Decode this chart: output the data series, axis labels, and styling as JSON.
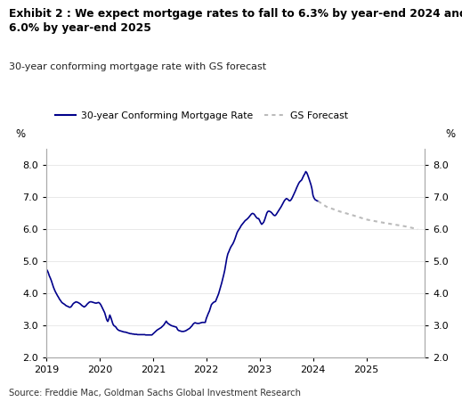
{
  "title_line1": "Exhibit 2 : We expect mortgage rates to fall to 6.3% by year-end 2024 and",
  "title_line2": "6.0% by year-end 2025",
  "subtitle": "30-year conforming mortgage rate with GS forecast",
  "source": "Source: Freddie Mac, Goldman Sachs Global Investment Research",
  "ylabel_left": "%",
  "ylabel_right": "%",
  "ylim": [
    2.0,
    8.5
  ],
  "yticks": [
    2.0,
    3.0,
    4.0,
    5.0,
    6.0,
    7.0,
    8.0
  ],
  "line_color": "#00008B",
  "forecast_color": "#BBBBBB",
  "background_color": "#FFFFFF",
  "legend_label_actual": "30-year Conforming Mortgage Rate",
  "legend_label_forecast": "GS Forecast",
  "actual_dates": [
    2019.0,
    2019.019,
    2019.038,
    2019.058,
    2019.077,
    2019.096,
    2019.115,
    2019.135,
    2019.154,
    2019.173,
    2019.192,
    2019.212,
    2019.231,
    2019.25,
    2019.269,
    2019.288,
    2019.308,
    2019.327,
    2019.346,
    2019.365,
    2019.385,
    2019.404,
    2019.423,
    2019.442,
    2019.462,
    2019.481,
    2019.5,
    2019.519,
    2019.538,
    2019.558,
    2019.577,
    2019.596,
    2019.615,
    2019.635,
    2019.654,
    2019.673,
    2019.692,
    2019.712,
    2019.731,
    2019.75,
    2019.769,
    2019.788,
    2019.808,
    2019.827,
    2019.846,
    2019.865,
    2019.885,
    2019.904,
    2019.923,
    2019.942,
    2019.962,
    2019.981,
    2020.0,
    2020.019,
    2020.038,
    2020.058,
    2020.077,
    2020.096,
    2020.115,
    2020.135,
    2020.154,
    2020.173,
    2020.192,
    2020.212,
    2020.231,
    2020.25,
    2020.269,
    2020.288,
    2020.308,
    2020.327,
    2020.346,
    2020.365,
    2020.385,
    2020.404,
    2020.423,
    2020.442,
    2020.462,
    2020.481,
    2020.5,
    2020.519,
    2020.538,
    2020.558,
    2020.577,
    2020.596,
    2020.615,
    2020.635,
    2020.654,
    2020.673,
    2020.692,
    2020.712,
    2020.731,
    2020.75,
    2020.769,
    2020.788,
    2020.808,
    2020.827,
    2020.846,
    2020.865,
    2020.885,
    2020.904,
    2020.923,
    2020.942,
    2020.962,
    2020.981,
    2021.0,
    2021.019,
    2021.038,
    2021.058,
    2021.077,
    2021.096,
    2021.115,
    2021.135,
    2021.154,
    2021.173,
    2021.192,
    2021.212,
    2021.231,
    2021.25,
    2021.269,
    2021.288,
    2021.308,
    2021.327,
    2021.346,
    2021.365,
    2021.385,
    2021.404,
    2021.423,
    2021.442,
    2021.462,
    2021.481,
    2021.5,
    2021.519,
    2021.538,
    2021.558,
    2021.577,
    2021.596,
    2021.615,
    2021.635,
    2021.654,
    2021.673,
    2021.692,
    2021.712,
    2021.731,
    2021.75,
    2021.769,
    2021.788,
    2021.808,
    2021.827,
    2021.846,
    2021.865,
    2021.885,
    2021.904,
    2021.923,
    2021.942,
    2021.962,
    2021.981,
    2022.0,
    2022.019,
    2022.038,
    2022.058,
    2022.077,
    2022.096,
    2022.115,
    2022.135,
    2022.154,
    2022.173,
    2022.192,
    2022.212,
    2022.231,
    2022.25,
    2022.269,
    2022.288,
    2022.308,
    2022.327,
    2022.346,
    2022.365,
    2022.385,
    2022.404,
    2022.423,
    2022.442,
    2022.462,
    2022.481,
    2022.5,
    2022.519,
    2022.538,
    2022.558,
    2022.577,
    2022.596,
    2022.615,
    2022.635,
    2022.654,
    2022.673,
    2022.692,
    2022.712,
    2022.731,
    2022.75,
    2022.769,
    2022.788,
    2022.808,
    2022.827,
    2022.846,
    2022.865,
    2022.885,
    2022.904,
    2022.923,
    2022.942,
    2022.962,
    2022.981,
    2023.0,
    2023.019,
    2023.038,
    2023.058,
    2023.077,
    2023.096,
    2023.115,
    2023.135,
    2023.154,
    2023.173,
    2023.192,
    2023.212,
    2023.231,
    2023.25,
    2023.269,
    2023.288,
    2023.308,
    2023.327,
    2023.346,
    2023.365,
    2023.385,
    2023.404,
    2023.423,
    2023.442,
    2023.462,
    2023.481,
    2023.5,
    2023.519,
    2023.538,
    2023.558,
    2023.577,
    2023.596,
    2023.615,
    2023.635,
    2023.654,
    2023.673,
    2023.692,
    2023.712,
    2023.731,
    2023.75,
    2023.769,
    2023.788,
    2023.808,
    2023.827,
    2023.846,
    2023.865,
    2023.885,
    2023.904,
    2023.923,
    2023.942,
    2023.962,
    2023.981,
    2024.0,
    2024.019,
    2024.038,
    2024.058,
    2024.077,
    2024.096
  ],
  "actual_values": [
    4.75,
    4.72,
    4.65,
    4.55,
    4.48,
    4.4,
    4.3,
    4.2,
    4.12,
    4.05,
    3.99,
    3.93,
    3.88,
    3.82,
    3.78,
    3.73,
    3.7,
    3.68,
    3.66,
    3.63,
    3.61,
    3.6,
    3.58,
    3.57,
    3.58,
    3.62,
    3.67,
    3.7,
    3.72,
    3.74,
    3.73,
    3.72,
    3.7,
    3.68,
    3.65,
    3.62,
    3.6,
    3.58,
    3.6,
    3.63,
    3.67,
    3.7,
    3.73,
    3.74,
    3.74,
    3.73,
    3.72,
    3.71,
    3.7,
    3.7,
    3.71,
    3.72,
    3.7,
    3.66,
    3.6,
    3.53,
    3.47,
    3.4,
    3.29,
    3.18,
    3.13,
    3.2,
    3.33,
    3.25,
    3.15,
    3.05,
    3.0,
    2.98,
    2.95,
    2.9,
    2.87,
    2.85,
    2.84,
    2.83,
    2.82,
    2.81,
    2.8,
    2.8,
    2.79,
    2.78,
    2.77,
    2.76,
    2.75,
    2.75,
    2.74,
    2.74,
    2.73,
    2.73,
    2.73,
    2.72,
    2.72,
    2.72,
    2.72,
    2.72,
    2.72,
    2.72,
    2.72,
    2.71,
    2.71,
    2.71,
    2.71,
    2.71,
    2.71,
    2.71,
    2.74,
    2.77,
    2.8,
    2.83,
    2.86,
    2.88,
    2.9,
    2.92,
    2.94,
    2.97,
    3.0,
    3.04,
    3.09,
    3.14,
    3.09,
    3.06,
    3.04,
    3.02,
    3.0,
    2.99,
    2.98,
    2.97,
    2.96,
    2.95,
    2.88,
    2.85,
    2.84,
    2.83,
    2.82,
    2.82,
    2.82,
    2.83,
    2.84,
    2.86,
    2.88,
    2.9,
    2.92,
    2.96,
    2.99,
    3.04,
    3.07,
    3.09,
    3.08,
    3.07,
    3.07,
    3.07,
    3.08,
    3.09,
    3.1,
    3.1,
    3.1,
    3.1,
    3.22,
    3.3,
    3.38,
    3.45,
    3.55,
    3.65,
    3.69,
    3.72,
    3.74,
    3.75,
    3.83,
    3.92,
    3.99,
    4.1,
    4.2,
    4.32,
    4.45,
    4.58,
    4.72,
    4.9,
    5.1,
    5.23,
    5.3,
    5.38,
    5.45,
    5.5,
    5.55,
    5.62,
    5.7,
    5.8,
    5.89,
    5.95,
    6.0,
    6.05,
    6.11,
    6.15,
    6.19,
    6.23,
    6.27,
    6.29,
    6.32,
    6.35,
    6.39,
    6.43,
    6.47,
    6.49,
    6.48,
    6.45,
    6.4,
    6.36,
    6.33,
    6.33,
    6.27,
    6.2,
    6.15,
    6.18,
    6.22,
    6.3,
    6.4,
    6.5,
    6.55,
    6.56,
    6.55,
    6.53,
    6.5,
    6.46,
    6.43,
    6.42,
    6.45,
    6.5,
    6.55,
    6.6,
    6.65,
    6.7,
    6.76,
    6.82,
    6.88,
    6.92,
    6.95,
    6.94,
    6.91,
    6.88,
    6.89,
    6.93,
    6.99,
    7.06,
    7.12,
    7.2,
    7.28,
    7.35,
    7.42,
    7.47,
    7.5,
    7.53,
    7.6,
    7.67,
    7.72,
    7.79,
    7.75,
    7.67,
    7.58,
    7.48,
    7.38,
    7.25,
    7.05,
    6.97,
    6.92,
    6.9,
    6.88,
    6.87
  ],
  "forecast_dates": [
    2024.096,
    2024.25,
    2024.5,
    2024.75,
    2025.0,
    2025.25,
    2025.5,
    2025.75,
    2025.96
  ],
  "forecast_values": [
    6.87,
    6.7,
    6.55,
    6.43,
    6.3,
    6.22,
    6.15,
    6.08,
    6.0
  ]
}
